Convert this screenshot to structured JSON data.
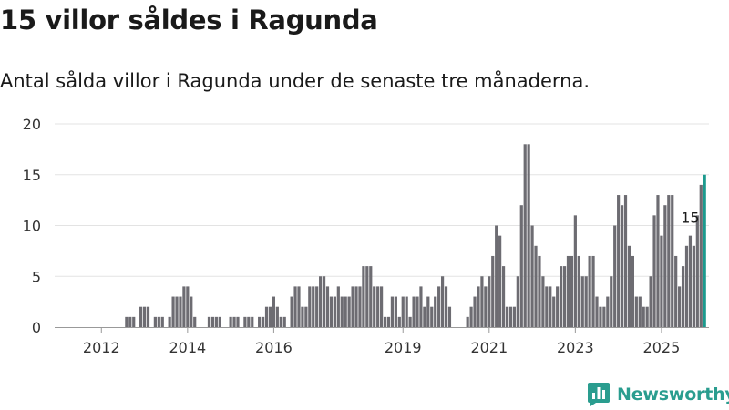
{
  "header": {
    "title": "15 villor såldes i Ragunda",
    "subtitle": "Antal sålda villor i Ragunda under de senaste tre månaderna."
  },
  "brand": {
    "name": "Newsworthy",
    "color": "#2a9d8f"
  },
  "chart_data": {
    "type": "bar",
    "title": "15 villor såldes i Ragunda",
    "subtitle": "Antal sålda villor i Ragunda under de senaste tre månaderna.",
    "xlabel": "",
    "ylabel": "",
    "ylim": [
      0,
      20
    ],
    "yticks": [
      0,
      5,
      10,
      15,
      20
    ],
    "grid": true,
    "legend": "none",
    "x_start": "2011-01",
    "x_step": "month",
    "xticks": [
      "2012",
      "2014",
      "2016",
      "2019",
      "2021",
      "2023",
      "2025"
    ],
    "bar_color": "#6d6c72",
    "highlight_color": "#1c9a8e",
    "annotation": {
      "text": "15",
      "target": "2025-09"
    },
    "series": [
      {
        "name": "",
        "values": [
          0,
          0,
          0,
          0,
          0,
          0,
          0,
          0,
          0,
          0,
          0,
          0,
          0,
          0,
          0,
          0,
          0,
          0,
          0,
          1,
          1,
          1,
          0,
          2,
          2,
          2,
          0,
          1,
          1,
          1,
          0,
          1,
          3,
          3,
          3,
          4,
          4,
          3,
          1,
          0,
          0,
          0,
          1,
          1,
          1,
          1,
          0,
          0,
          1,
          1,
          1,
          0,
          1,
          1,
          1,
          0,
          1,
          1,
          2,
          2,
          3,
          2,
          1,
          1,
          0,
          3,
          4,
          4,
          2,
          2,
          4,
          4,
          4,
          5,
          5,
          4,
          3,
          3,
          4,
          3,
          3,
          3,
          4,
          4,
          4,
          6,
          6,
          6,
          4,
          4,
          4,
          1,
          1,
          3,
          3,
          1,
          3,
          3,
          1,
          3,
          3,
          4,
          2,
          3,
          2,
          3,
          4,
          5,
          4,
          2,
          0,
          0,
          0,
          0,
          1,
          2,
          3,
          4,
          5,
          4,
          5,
          7,
          10,
          9,
          6,
          2,
          2,
          2,
          5,
          12,
          18,
          18,
          10,
          8,
          7,
          5,
          4,
          4,
          3,
          4,
          6,
          6,
          7,
          7,
          11,
          7,
          5,
          5,
          7,
          7,
          3,
          2,
          2,
          3,
          5,
          10,
          13,
          12,
          13,
          8,
          7,
          3,
          3,
          2,
          2,
          5,
          11,
          13,
          9,
          12,
          13,
          13,
          7,
          4,
          6,
          8,
          9,
          8,
          11,
          14,
          15
        ]
      }
    ]
  }
}
